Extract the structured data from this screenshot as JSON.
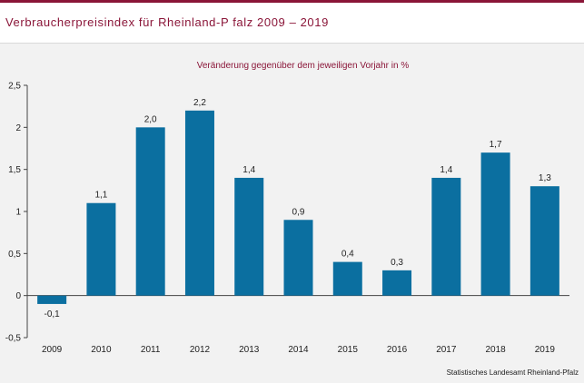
{
  "header": {
    "title": "Verbraucherpreisindex für Rheinland-P falz 2009 – 2019"
  },
  "footer": {
    "source": "Statistisches Landesamt Rheinland-Pfalz"
  },
  "colors": {
    "bar": "#0b6fa0",
    "accent": "#8a1538",
    "background": "#f2f2f2"
  },
  "chart_data": {
    "type": "bar",
    "title": "",
    "subtitle": "Veränderung gegenüber dem jeweiligen Vorjahr in %",
    "xlabel": "",
    "ylabel": "",
    "categories": [
      "2009",
      "2010",
      "2011",
      "2012",
      "2013",
      "2014",
      "2015",
      "2016",
      "2017",
      "2018",
      "2019"
    ],
    "values": [
      -0.1,
      1.1,
      2.0,
      2.2,
      1.4,
      0.9,
      0.4,
      0.3,
      1.4,
      1.7,
      1.3
    ],
    "data_labels": [
      "-0,1",
      "1,1",
      "2,0",
      "2,2",
      "1,4",
      "0,9",
      "0,4",
      "0,3",
      "1,4",
      "1,7",
      "1,3"
    ],
    "ylim": [
      -0.5,
      2.5
    ],
    "yticks": [
      -0.5,
      0,
      0.5,
      1,
      1.5,
      2,
      2.5
    ],
    "ytick_labels": [
      "-0,5",
      "0",
      "0,5",
      "1",
      "1,5",
      "2",
      "2,5"
    ],
    "grid": false,
    "legend": "none"
  }
}
